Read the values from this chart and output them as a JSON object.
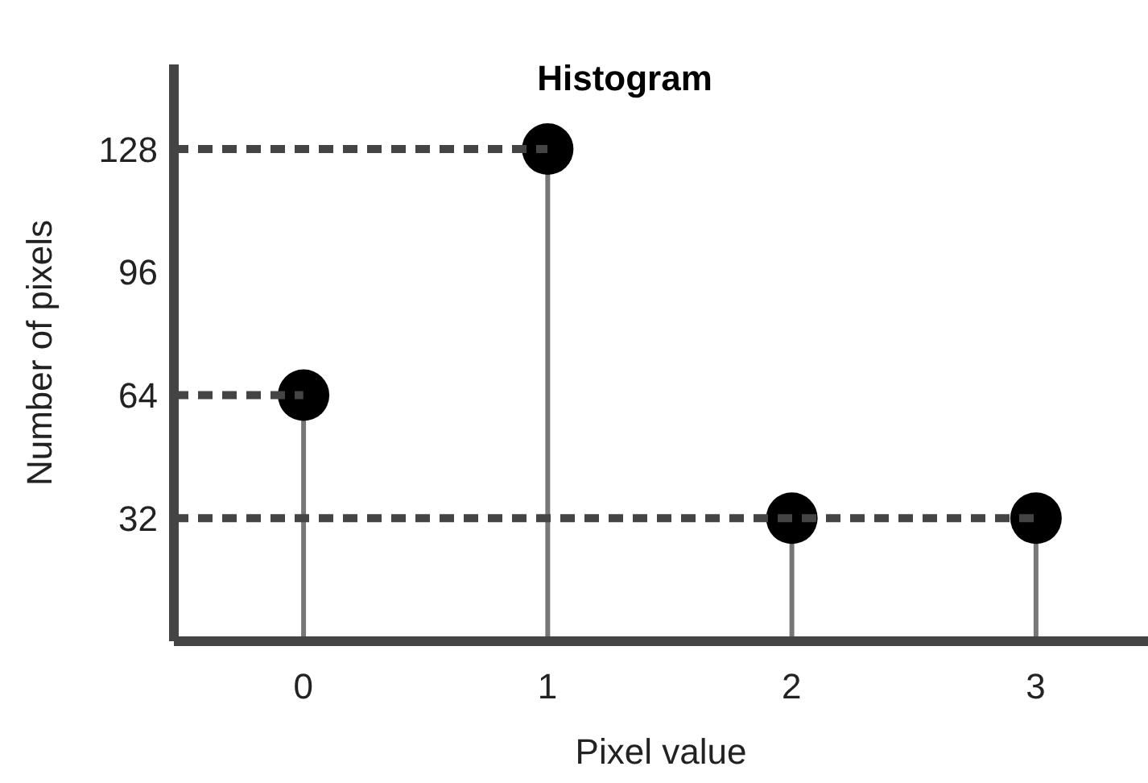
{
  "chart_data": {
    "type": "lollipop",
    "title": "Histogram",
    "xlabel": "Pixel value",
    "ylabel": "Number of pixels",
    "categories": [
      "0",
      "1",
      "2",
      "3"
    ],
    "values": [
      64,
      128,
      32,
      32
    ],
    "color": "#000000",
    "ylim": [
      0,
      150
    ],
    "yticks": [
      32,
      64,
      96,
      128
    ],
    "ref_lines": [
      {
        "axis": "y",
        "value": 64,
        "line_style": "dashed",
        "color": "#444444"
      },
      {
        "axis": "y",
        "value": 128,
        "line_style": "dashed",
        "color": "#444444"
      },
      {
        "axis": "y",
        "value": 32,
        "line_style": "dashed",
        "color": "#444444"
      }
    ],
    "marker": "circle"
  }
}
